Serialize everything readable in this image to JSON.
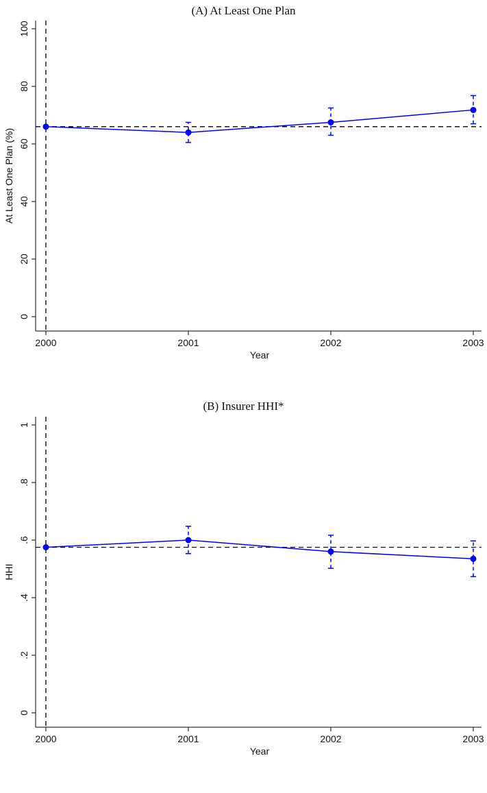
{
  "chart_data": [
    {
      "type": "line",
      "title": "(A)  At Least One Plan",
      "xlabel": "Year",
      "ylabel": "At Least One Plan (%)",
      "x": [
        2000,
        2001,
        2002,
        2003
      ],
      "xlim": [
        2000,
        2003
      ],
      "ylim": [
        0,
        100
      ],
      "yticks": [
        "0",
        "20",
        "40",
        "60",
        "80",
        "100"
      ],
      "ytick_values": [
        0,
        20,
        40,
        60,
        80,
        100
      ],
      "series": [
        {
          "values": [
            66,
            64,
            67.5,
            71.8
          ],
          "ci_low": [
            null,
            60.5,
            63,
            67
          ],
          "ci_high": [
            null,
            67.5,
            72.5,
            76.8
          ],
          "color": "#0000ff"
        }
      ],
      "reference_y": 66,
      "reference_x": 2000,
      "grid": false
    },
    {
      "type": "line",
      "title": "(B)  Insurer HHI*",
      "xlabel": "Year",
      "ylabel": "HHI",
      "x": [
        2000,
        2001,
        2002,
        2003
      ],
      "xlim": [
        2000,
        2003
      ],
      "ylim": [
        0,
        1
      ],
      "yticks": [
        "0",
        ".2",
        ".4",
        ".6",
        ".8",
        "1"
      ],
      "ytick_values": [
        0,
        0.2,
        0.4,
        0.6,
        0.8,
        1
      ],
      "series": [
        {
          "values": [
            0.575,
            0.6,
            0.56,
            0.535
          ],
          "ci_low": [
            null,
            0.553,
            0.502,
            0.473
          ],
          "ci_high": [
            null,
            0.648,
            0.617,
            0.597
          ],
          "color": "#0000ff"
        }
      ],
      "reference_y": 0.575,
      "reference_x": 2000,
      "grid": false
    }
  ]
}
